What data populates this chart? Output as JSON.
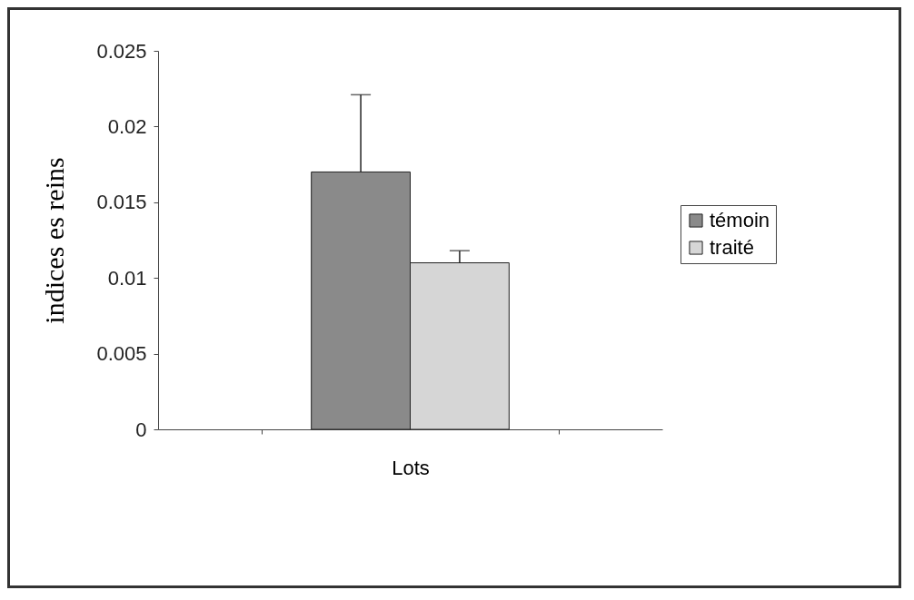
{
  "chart_data": {
    "type": "bar",
    "categories": [
      null
    ],
    "xlabel": "Lots",
    "ylabel": "indices es reins",
    "ylim": [
      0,
      0.025
    ],
    "yticks": [
      0,
      0.005,
      0.01,
      0.015,
      0.02,
      0.025
    ],
    "legend": "right",
    "series": [
      {
        "name": "témoin",
        "color": "#8a8a8a",
        "values": [
          0.017
        ],
        "errors": [
          [
            0.017,
            0.0221
          ]
        ]
      },
      {
        "name": "traité",
        "color": "#d6d6d6",
        "values": [
          0.011
        ],
        "errors": [
          [
            0.011,
            0.0118
          ]
        ]
      }
    ]
  }
}
